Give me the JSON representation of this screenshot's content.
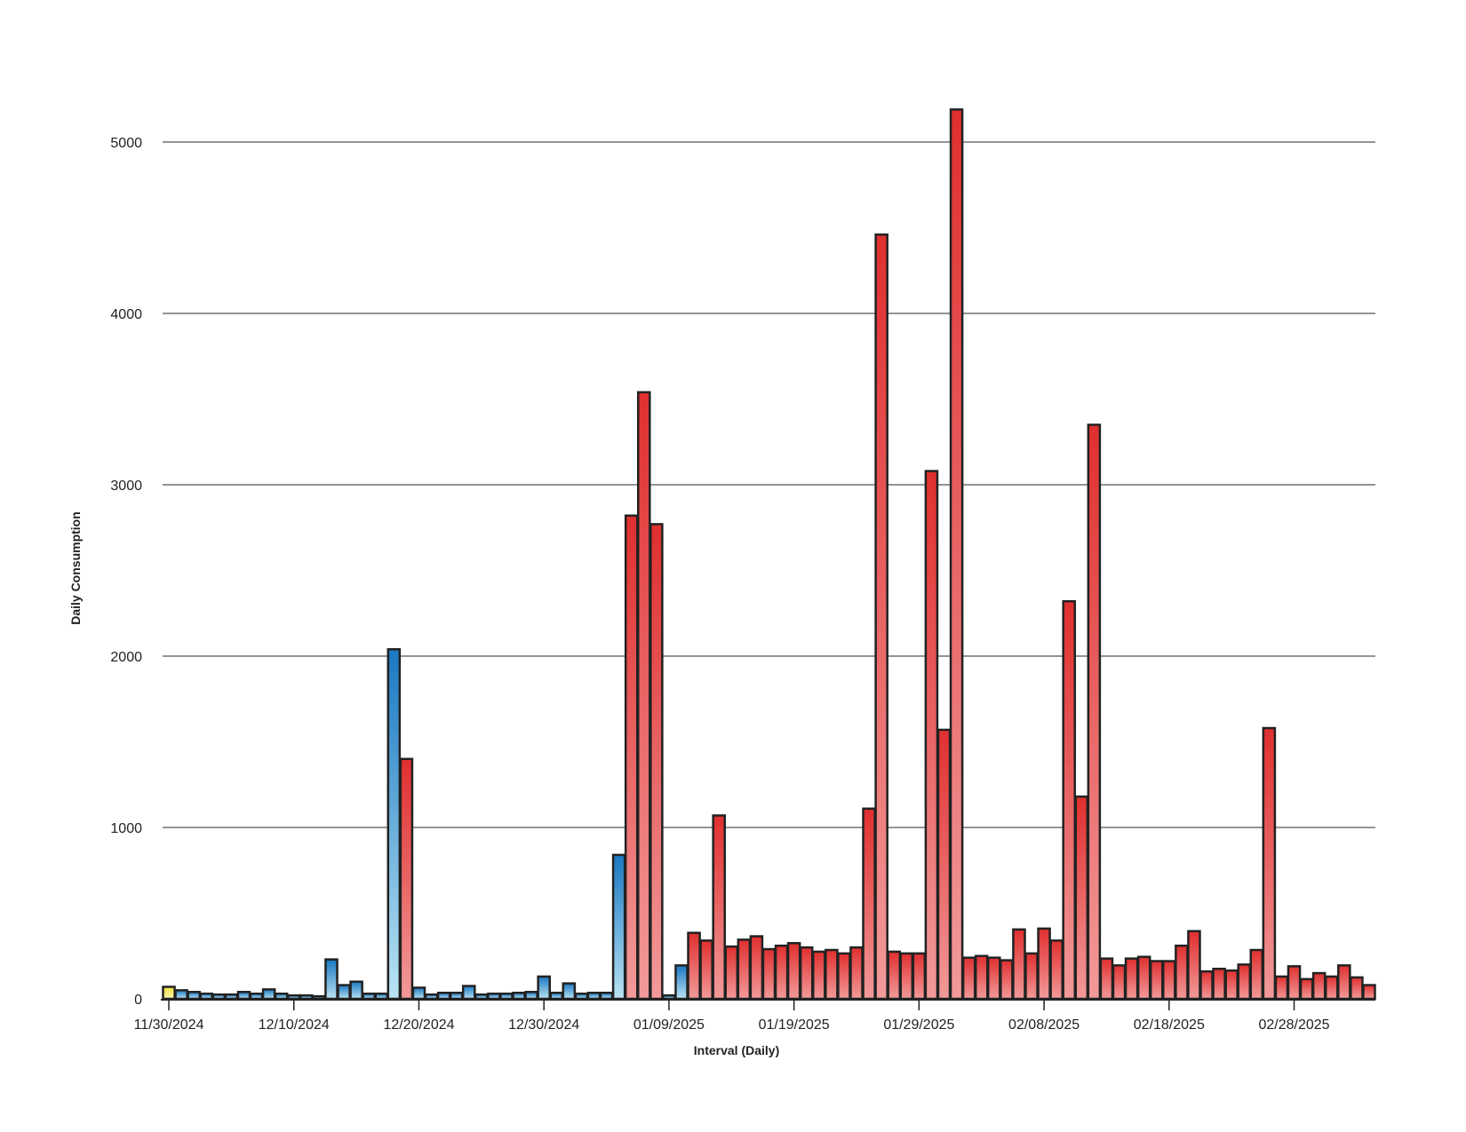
{
  "chart_data": {
    "type": "bar",
    "title": "",
    "xlabel": "Interval (Daily)",
    "ylabel": "Daily Consumption",
    "ylim": [
      0,
      5200
    ],
    "yticks": [
      0,
      1000,
      2000,
      3000,
      4000,
      5000
    ],
    "grid": "horizontal",
    "x_tick_labels": [
      "11/30/2024",
      "12/10/2024",
      "12/20/2024",
      "12/30/2024",
      "01/09/2025",
      "01/19/2025",
      "01/29/2025",
      "02/08/2025",
      "02/18/2025",
      "02/28/2025"
    ],
    "x_tick_every_days": 10,
    "start_date": "11/30/2024",
    "colors": {
      "first_day": "#f2e84a",
      "blue": "#1f7fc4",
      "red": "#e23434",
      "outline": "#222222",
      "gridline": "#555555"
    },
    "categories": [
      "11/30/2024",
      "12/01/2024",
      "12/02/2024",
      "12/03/2024",
      "12/04/2024",
      "12/05/2024",
      "12/06/2024",
      "12/07/2024",
      "12/08/2024",
      "12/09/2024",
      "12/10/2024",
      "12/11/2024",
      "12/12/2024",
      "12/13/2024",
      "12/14/2024",
      "12/15/2024",
      "12/16/2024",
      "12/17/2024",
      "12/18/2024",
      "12/19/2024",
      "12/20/2024",
      "12/21/2024",
      "12/22/2024",
      "12/23/2024",
      "12/24/2024",
      "12/25/2024",
      "12/26/2024",
      "12/27/2024",
      "12/28/2024",
      "12/29/2024",
      "12/30/2024",
      "12/31/2024",
      "01/01/2025",
      "01/02/2025",
      "01/03/2025",
      "01/04/2025",
      "01/05/2025",
      "01/06/2025",
      "01/07/2025",
      "01/08/2025",
      "01/09/2025",
      "01/10/2025",
      "01/11/2025",
      "01/12/2025",
      "01/13/2025",
      "01/14/2025",
      "01/15/2025",
      "01/16/2025",
      "01/17/2025",
      "01/18/2025",
      "01/19/2025",
      "01/20/2025",
      "01/21/2025",
      "01/22/2025",
      "01/23/2025",
      "01/24/2025",
      "01/25/2025",
      "01/26/2025",
      "01/27/2025",
      "01/28/2025",
      "01/29/2025",
      "01/30/2025",
      "01/31/2025",
      "02/01/2025",
      "02/02/2025",
      "02/03/2025",
      "02/04/2025",
      "02/05/2025",
      "02/06/2025",
      "02/07/2025",
      "02/08/2025",
      "02/09/2025",
      "02/10/2025",
      "02/11/2025",
      "02/12/2025",
      "02/13/2025",
      "02/14/2025",
      "02/15/2025",
      "02/16/2025",
      "02/17/2025",
      "02/18/2025",
      "02/19/2025",
      "02/20/2025",
      "02/21/2025",
      "02/22/2025",
      "02/23/2025",
      "02/24/2025",
      "02/25/2025",
      "02/26/2025",
      "02/27/2025",
      "02/28/2025",
      "03/01/2025",
      "03/02/2025",
      "03/03/2025",
      "03/04/2025",
      "03/05/2025",
      "03/06/2025"
    ],
    "values": [
      70,
      50,
      40,
      30,
      25,
      25,
      40,
      30,
      55,
      30,
      20,
      20,
      15,
      230,
      80,
      100,
      30,
      30,
      2040,
      1400,
      65,
      25,
      35,
      35,
      75,
      25,
      30,
      30,
      35,
      40,
      130,
      35,
      90,
      30,
      35,
      35,
      840,
      2820,
      3540,
      2770,
      20,
      195,
      385,
      340,
      1070,
      305,
      345,
      365,
      290,
      310,
      325,
      300,
      275,
      285,
      265,
      300,
      1110,
      4460,
      275,
      265,
      265,
      3080,
      1570,
      5190,
      240,
      250,
      240,
      225,
      405,
      265,
      410,
      340,
      2320,
      1180,
      3350,
      235,
      195,
      235,
      245,
      220,
      220,
      310,
      395,
      160,
      175,
      165,
      200,
      285,
      1580,
      130,
      190,
      115,
      150,
      130,
      195,
      125,
      80
    ],
    "bar_colors": [
      "yellow",
      "blue",
      "blue",
      "blue",
      "blue",
      "blue",
      "blue",
      "blue",
      "blue",
      "blue",
      "blue",
      "blue",
      "blue",
      "blue",
      "blue",
      "blue",
      "blue",
      "blue",
      "blue",
      "red",
      "blue",
      "blue",
      "blue",
      "blue",
      "blue",
      "blue",
      "blue",
      "blue",
      "blue",
      "blue",
      "blue",
      "blue",
      "blue",
      "blue",
      "blue",
      "blue",
      "blue",
      "red",
      "red",
      "red",
      "blue",
      "blue",
      "red",
      "red",
      "red",
      "red",
      "red",
      "red",
      "red",
      "red",
      "red",
      "red",
      "red",
      "red",
      "red",
      "red",
      "red",
      "red",
      "red",
      "red",
      "red",
      "red",
      "red",
      "red",
      "red",
      "red",
      "red",
      "red",
      "red",
      "red",
      "red",
      "red",
      "red",
      "red",
      "red",
      "red",
      "red",
      "red",
      "red",
      "red",
      "red",
      "red",
      "red",
      "red",
      "red",
      "red",
      "red",
      "red",
      "red",
      "red",
      "red",
      "red",
      "red",
      "red",
      "red",
      "red",
      "red"
    ]
  }
}
